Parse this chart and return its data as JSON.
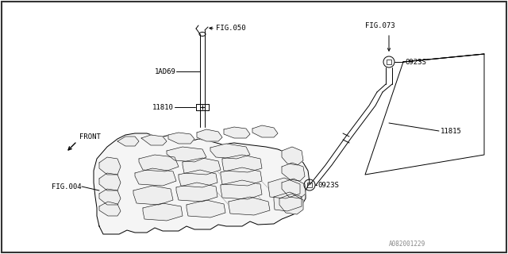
{
  "bg_color": "#ffffff",
  "border_color": "#000000",
  "line_color": "#000000",
  "text_color": "#000000",
  "watermark": "A082001229",
  "labels": {
    "fig050": "FIG.050",
    "fig073": "FIG.073",
    "fig004": "FIG.004",
    "front": "FRONT",
    "part_1ad69": "1AD69",
    "part_11810": "11810",
    "part_11815": "11815",
    "part_0923s_top": "0923S",
    "part_0923s_bot": "0923S"
  }
}
